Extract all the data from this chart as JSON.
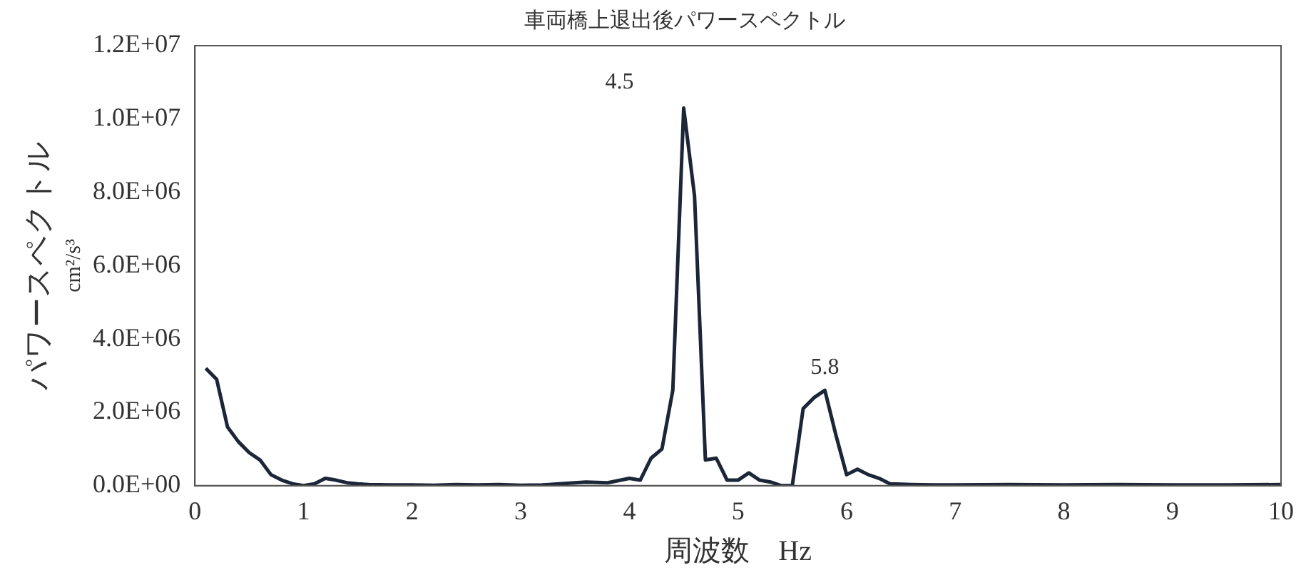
{
  "chart_data": {
    "type": "line",
    "title": "車両橋上退出後パワースペクトル",
    "xlabel": "周波数　Hz",
    "ylabel": "パワースペクトル\ncm²/s³",
    "series": [
      {
        "color": "#1b2638",
        "x": [
          0.1,
          0.2,
          0.3,
          0.4,
          0.5,
          0.6,
          0.7,
          0.8,
          0.9,
          1.0,
          1.1,
          1.2,
          1.3,
          1.4,
          1.5,
          1.6,
          1.8,
          2.0,
          2.2,
          2.4,
          2.6,
          2.8,
          3.0,
          3.2,
          3.4,
          3.6,
          3.8,
          4.0,
          4.1,
          4.2,
          4.3,
          4.4,
          4.5,
          4.6,
          4.7,
          4.8,
          4.9,
          5.0,
          5.1,
          5.2,
          5.3,
          5.4,
          5.5,
          5.6,
          5.7,
          5.8,
          5.9,
          6.0,
          6.1,
          6.2,
          6.3,
          6.4,
          6.6,
          6.8,
          7.0,
          7.5,
          8.0,
          8.5,
          9.0,
          9.5,
          10.0
        ],
        "values": [
          3200000,
          2900000,
          1600000,
          1200000,
          900000,
          700000,
          300000,
          150000,
          50000,
          0,
          50000,
          200000,
          150000,
          80000,
          50000,
          30000,
          20000,
          20000,
          10000,
          30000,
          20000,
          30000,
          10000,
          20000,
          60000,
          100000,
          80000,
          200000,
          150000,
          750000,
          1000000,
          2600000,
          10300000,
          7900000,
          700000,
          750000,
          150000,
          150000,
          350000,
          150000,
          100000,
          0,
          0,
          2100000,
          2400000,
          2600000,
          1400000,
          300000,
          450000,
          300000,
          200000,
          50000,
          30000,
          20000,
          20000,
          30000,
          20000,
          30000,
          20000,
          20000,
          30000
        ]
      }
    ],
    "xlim": [
      0,
      10
    ],
    "xticks": [
      0,
      1,
      2,
      3,
      4,
      5,
      6,
      7,
      8,
      9,
      10
    ],
    "ylim": [
      0,
      12000000
    ],
    "yticks": [
      {
        "value": 0,
        "label": "0.0E+00"
      },
      {
        "value": 2000000,
        "label": "2.0E+06"
      },
      {
        "value": 4000000,
        "label": "4.0E+06"
      },
      {
        "value": 6000000,
        "label": "6.0E+06"
      },
      {
        "value": 8000000,
        "label": "8.0E+06"
      },
      {
        "value": 10000000,
        "label": "1.0E+07"
      },
      {
        "value": 12000000,
        "label": "1.2E+07"
      }
    ],
    "annotations": [
      {
        "text": "4.5",
        "x": 4.5,
        "y": 10300000
      },
      {
        "text": "5.8",
        "x": 5.8,
        "y": 2600000
      }
    ],
    "grid": false,
    "legend": false,
    "marker": "none",
    "line_style": "solid"
  }
}
